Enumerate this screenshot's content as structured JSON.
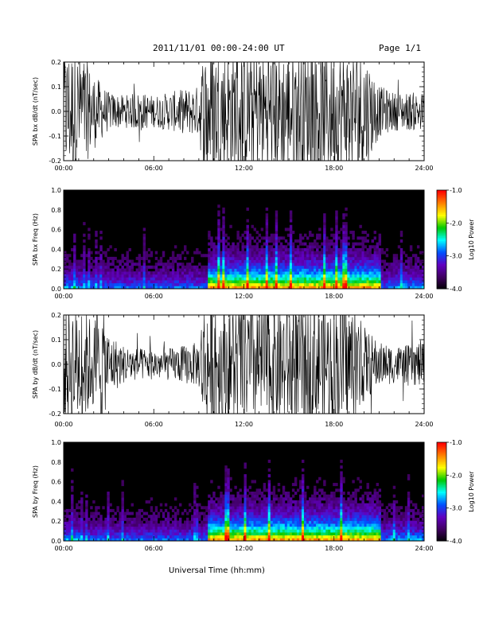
{
  "header": {
    "title": "2011/11/01   00:00-24:00 UT",
    "page": "Page 1/1"
  },
  "footer": {
    "xlabel": "Universal Time (hh:mm)"
  },
  "colorbar": {
    "title": "Log10 Power",
    "ticks": [
      "-1.0",
      "-2.0",
      "-3.0",
      "-4.0"
    ],
    "colors": [
      "#ff0000",
      "#ff8000",
      "#ffff00",
      "#00c800",
      "#00ffff",
      "#0050ff",
      "#6000c0",
      "#400060",
      "#000000"
    ]
  },
  "chart_data": [
    {
      "type": "line",
      "id": "bx-dbdt",
      "ylabel": "SPA bx dB/dt (nT/sec)",
      "xlabel": "",
      "x_ticks": [
        "00:00",
        "06:00",
        "12:00",
        "18:00",
        "24:00"
      ],
      "y_ticks": [
        "-0.2",
        "-0.1",
        "0.0",
        "0.1",
        "0.2"
      ],
      "xlim": [
        0,
        24
      ],
      "ylim": [
        -0.2,
        0.2
      ],
      "series": [
        {
          "x": [
            0,
            1,
            2,
            3,
            4,
            5,
            6,
            7,
            8,
            9,
            9.3,
            10,
            11,
            12,
            13,
            14,
            15,
            16,
            17,
            18,
            19,
            20,
            21,
            22,
            23,
            24
          ],
          "envelope": [
            0.2,
            0.2,
            0.12,
            0.06,
            0.05,
            0.06,
            0.05,
            0.06,
            0.07,
            0.08,
            0.2,
            0.2,
            0.2,
            0.2,
            0.2,
            0.2,
            0.2,
            0.2,
            0.2,
            0.2,
            0.2,
            0.2,
            0.08,
            0.06,
            0.06,
            0.06
          ]
        }
      ]
    },
    {
      "type": "heatmap",
      "id": "bx-freq",
      "ylabel": "SPA bx Freq (Hz)",
      "xlabel": "",
      "x_ticks": [
        "00:00",
        "06:00",
        "12:00",
        "18:00",
        "24:00"
      ],
      "y_ticks": [
        "0.0",
        "0.2",
        "0.4",
        "0.6",
        "0.8",
        "1.0"
      ],
      "xlim": [
        0,
        24
      ],
      "ylim": [
        0,
        1
      ],
      "zlim": [
        -4,
        -1
      ],
      "z_label": "Log10 Power"
    },
    {
      "type": "line",
      "id": "by-dbdt",
      "ylabel": "SPA by dB/dt (nT/sec)",
      "xlabel": "",
      "x_ticks": [
        "00:00",
        "06:00",
        "12:00",
        "18:00",
        "24:00"
      ],
      "y_ticks": [
        "-0.2",
        "-0.1",
        "0.0",
        "0.1",
        "0.2"
      ],
      "xlim": [
        0,
        24
      ],
      "ylim": [
        -0.2,
        0.2
      ],
      "series": [
        {
          "x": [
            0,
            1,
            2,
            2.5,
            3,
            4,
            5,
            6,
            7,
            8,
            9,
            9.3,
            10,
            11,
            12,
            13,
            14,
            15,
            16,
            17,
            18,
            19,
            20,
            21,
            22,
            23,
            24
          ],
          "envelope": [
            0.2,
            0.2,
            0.14,
            0.2,
            0.1,
            0.06,
            0.05,
            0.05,
            0.05,
            0.06,
            0.07,
            0.2,
            0.2,
            0.2,
            0.2,
            0.2,
            0.2,
            0.2,
            0.2,
            0.2,
            0.2,
            0.2,
            0.12,
            0.07,
            0.06,
            0.06,
            0.08
          ]
        }
      ]
    },
    {
      "type": "heatmap",
      "id": "by-freq",
      "ylabel": "SPA by Freq (Hz)",
      "xlabel": "",
      "x_ticks": [
        "00:00",
        "06:00",
        "12:00",
        "18:00",
        "24:00"
      ],
      "y_ticks": [
        "0.0",
        "0.2",
        "0.4",
        "0.6",
        "0.8",
        "1.0"
      ],
      "xlim": [
        0,
        24
      ],
      "ylim": [
        0,
        1
      ],
      "zlim": [
        -4,
        -1
      ],
      "z_label": "Log10 Power"
    }
  ]
}
